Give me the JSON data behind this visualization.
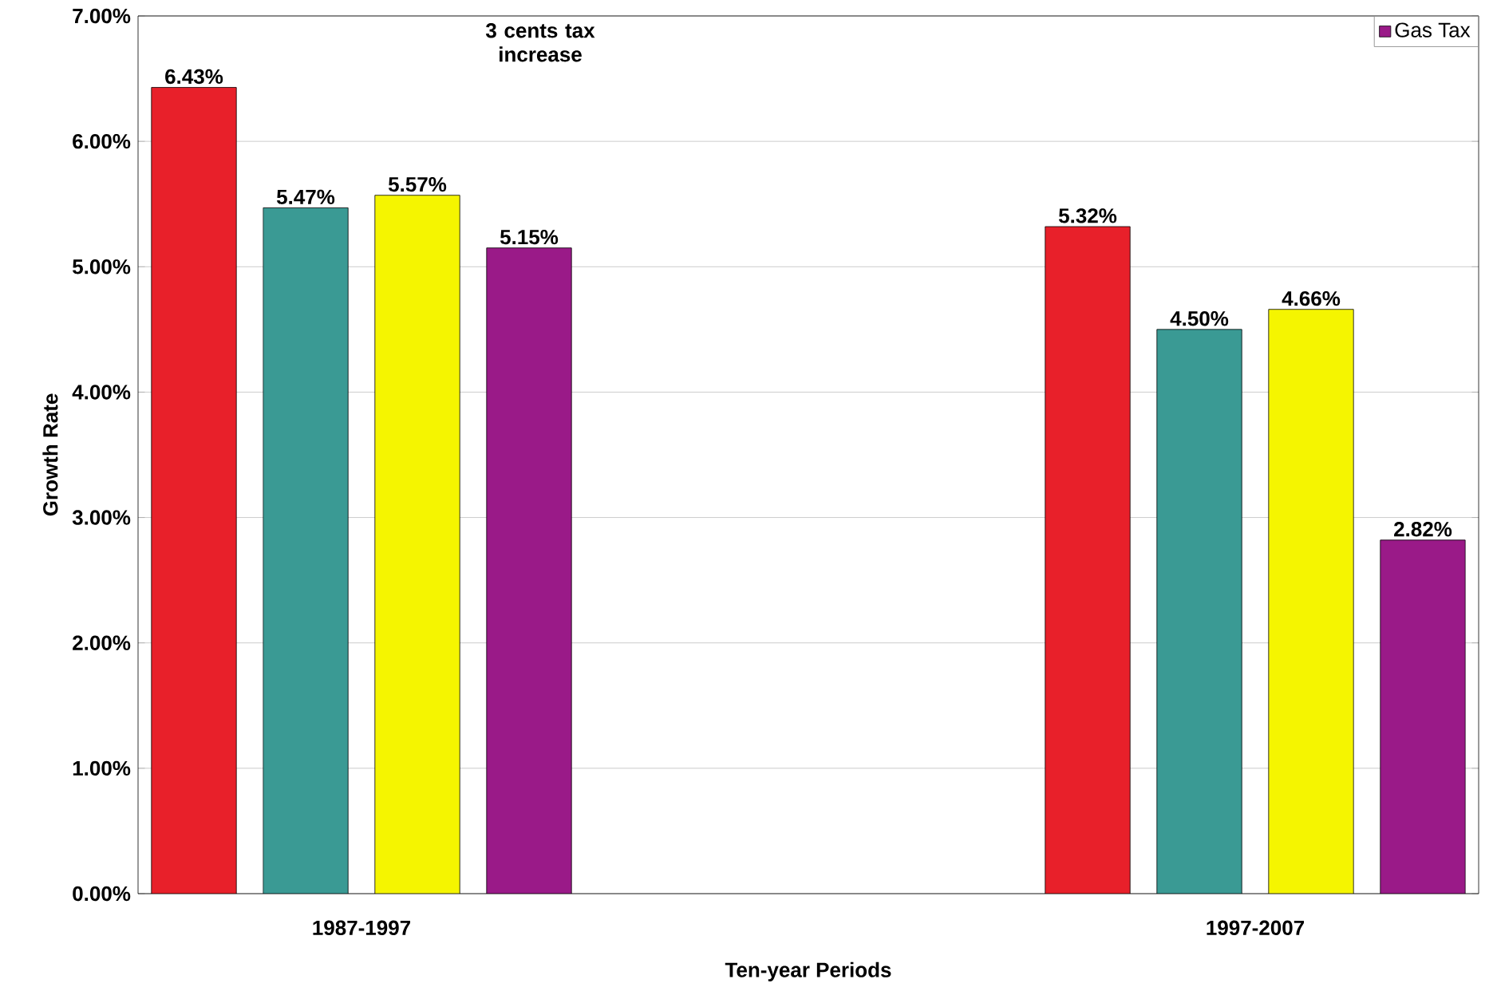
{
  "chart_data": {
    "type": "bar",
    "xlabel": "Ten-year Periods",
    "ylabel": "Growth Rate",
    "categories": [
      "1987-1997",
      null,
      "1997-2007"
    ],
    "series": [
      {
        "color": "#e8202a",
        "values": [
          6.43,
          null,
          5.32
        ],
        "value_labels": [
          "6.43%",
          null,
          "5.32%"
        ]
      },
      {
        "color": "#3a9a94",
        "values": [
          5.47,
          null,
          4.5
        ],
        "value_labels": [
          "5.47%",
          null,
          "4.50%"
        ]
      },
      {
        "color": "#f5f500",
        "values": [
          5.57,
          null,
          4.66
        ],
        "value_labels": [
          "5.57%",
          null,
          "4.66%"
        ]
      },
      {
        "name": "Gas Tax",
        "color": "#9a1a88",
        "values": [
          5.15,
          null,
          2.82
        ],
        "value_labels": [
          "5.15%",
          null,
          "2.82%"
        ]
      }
    ],
    "ylim": [
      0,
      7
    ],
    "yticks": [
      {
        "value": 0,
        "label": "0.00%"
      },
      {
        "value": 1,
        "label": "1.00%"
      },
      {
        "value": 2,
        "label": "2.00%"
      },
      {
        "value": 3,
        "label": "3.00%"
      },
      {
        "value": 4,
        "label": "4.00%"
      },
      {
        "value": 5,
        "label": "5.00%"
      },
      {
        "value": 6,
        "label": "6.00%"
      },
      {
        "value": 7,
        "label": "7.00%"
      }
    ],
    "grid": "y",
    "legend": "top right",
    "annotations": [
      "3 cents tax increase"
    ]
  }
}
